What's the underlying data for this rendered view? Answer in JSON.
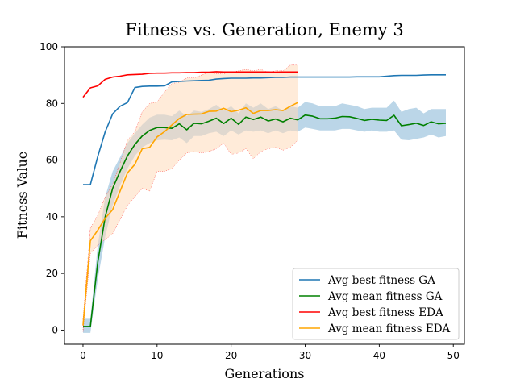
{
  "chart_data": {
    "type": "line",
    "title": "Fitness vs. Generation, Enemy 3",
    "xlabel": "Generations",
    "ylabel": "Fitness Value",
    "xlim": [
      -2.5,
      51.5
    ],
    "ylim": [
      -5,
      100
    ],
    "xticks": [
      0,
      10,
      20,
      30,
      40,
      50
    ],
    "yticks": [
      0,
      20,
      40,
      60,
      80,
      100
    ],
    "grid": false,
    "legend_position": "lower-right",
    "series": [
      {
        "name": "Avg best fitness GA",
        "color": "#1f77b4",
        "x": [
          0,
          1,
          2,
          3,
          4,
          5,
          6,
          7,
          8,
          9,
          10,
          11,
          12,
          13,
          14,
          15,
          16,
          17,
          18,
          19,
          20,
          21,
          22,
          23,
          24,
          25,
          26,
          27,
          28,
          29,
          30,
          31,
          32,
          33,
          34,
          35,
          36,
          37,
          38,
          39,
          40,
          41,
          42,
          43,
          44,
          45,
          46,
          47,
          48,
          49
        ],
        "y": [
          51.3,
          51.3,
          61.3,
          70.0,
          76.3,
          79.0,
          80.3,
          85.6,
          86.0,
          86.1,
          86.1,
          86.2,
          87.6,
          87.8,
          87.9,
          88.0,
          88.1,
          88.2,
          88.6,
          88.8,
          88.9,
          88.9,
          88.9,
          89.0,
          89.0,
          89.1,
          89.2,
          89.2,
          89.3,
          89.3,
          89.3,
          89.3,
          89.3,
          89.3,
          89.3,
          89.3,
          89.3,
          89.4,
          89.4,
          89.4,
          89.4,
          89.6,
          89.8,
          89.9,
          89.9,
          89.9,
          90.0,
          90.1,
          90.1,
          90.1
        ]
      },
      {
        "name": "Avg mean fitness GA",
        "color": "#008000",
        "band_color": "#1f77b4",
        "x": [
          0,
          1,
          2,
          3,
          4,
          5,
          6,
          7,
          8,
          9,
          10,
          11,
          12,
          13,
          14,
          15,
          16,
          17,
          18,
          19,
          20,
          21,
          22,
          23,
          24,
          25,
          26,
          27,
          28,
          29,
          30,
          31,
          32,
          33,
          34,
          35,
          36,
          37,
          38,
          39,
          40,
          41,
          42,
          43,
          44,
          45,
          46,
          47,
          48,
          49
        ],
        "y": [
          1.3,
          1.3,
          24.0,
          40.0,
          50.0,
          56.0,
          61.5,
          65.5,
          68.5,
          70.5,
          71.5,
          71.5,
          71.2,
          72.8,
          70.7,
          73.0,
          72.8,
          73.7,
          74.8,
          72.9,
          74.8,
          72.6,
          75.2,
          74.3,
          75.2,
          73.8,
          74.5,
          73.5,
          74.8,
          74.2,
          75.9,
          75.5,
          74.6,
          74.6,
          74.8,
          75.4,
          75.3,
          74.7,
          74.0,
          74.4,
          74.1,
          74.0,
          75.8,
          72.1,
          72.5,
          73.0,
          72.2,
          73.5,
          72.8,
          73.0
        ],
        "lower": [
          -1.0,
          -1.0,
          18.0,
          33.0,
          44.0,
          51.0,
          57.0,
          61.5,
          64.5,
          66.0,
          67.0,
          67.2,
          67.0,
          68.0,
          66.0,
          68.5,
          68.5,
          69.5,
          70.0,
          68.5,
          70.5,
          69.0,
          70.5,
          70.0,
          70.5,
          69.5,
          70.5,
          69.5,
          70.5,
          70.0,
          71.5,
          71.0,
          70.5,
          70.5,
          70.5,
          71.0,
          71.0,
          70.5,
          70.0,
          70.5,
          70.0,
          70.0,
          70.5,
          67.2,
          67.0,
          67.5,
          68.0,
          69.0,
          68.0,
          68.5
        ],
        "upper": [
          4.0,
          4.0,
          30.0,
          47.0,
          56.0,
          61.0,
          66.0,
          69.5,
          72.5,
          75.0,
          76.0,
          76.0,
          75.5,
          77.5,
          75.5,
          77.5,
          77.0,
          78.0,
          79.5,
          77.5,
          79.0,
          76.5,
          80.0,
          78.5,
          80.0,
          78.0,
          79.0,
          77.5,
          79.0,
          78.5,
          80.5,
          80.0,
          79.0,
          79.0,
          79.0,
          80.0,
          79.5,
          79.0,
          78.0,
          78.5,
          78.5,
          78.5,
          81.0,
          77.0,
          78.0,
          78.5,
          76.5,
          78.0,
          78.0,
          78.0
        ]
      },
      {
        "name": "Avg best fitness EDA",
        "color": "#ff0000",
        "x": [
          0,
          1,
          2,
          3,
          4,
          5,
          6,
          7,
          8,
          9,
          10,
          11,
          12,
          13,
          14,
          15,
          16,
          17,
          18,
          19,
          20,
          21,
          22,
          23,
          24,
          25,
          26,
          27,
          28,
          29
        ],
        "y": [
          82.2,
          85.5,
          86.2,
          88.5,
          89.3,
          89.6,
          90.1,
          90.2,
          90.3,
          90.6,
          90.7,
          90.7,
          90.8,
          90.8,
          90.9,
          90.9,
          91.0,
          91.0,
          91.2,
          91.1,
          91.1,
          91.1,
          91.1,
          91.1,
          91.1,
          91.1,
          91.0,
          91.1,
          91.1,
          91.1
        ]
      },
      {
        "name": "Avg mean fitness EDA",
        "color": "#ffa500",
        "band_color": "#ffdab9",
        "x": [
          0,
          1,
          2,
          3,
          4,
          5,
          6,
          7,
          8,
          9,
          10,
          11,
          12,
          13,
          14,
          15,
          16,
          17,
          18,
          19,
          20,
          21,
          22,
          23,
          24,
          25,
          26,
          27,
          28,
          29
        ],
        "y": [
          1.7,
          31.5,
          35.3,
          39.5,
          42.5,
          49.0,
          55.5,
          58.5,
          64.0,
          64.5,
          68.2,
          70.0,
          72.4,
          74.7,
          76.1,
          76.2,
          76.3,
          77.2,
          77.3,
          78.3,
          77.1,
          77.6,
          78.5,
          76.5,
          77.5,
          77.5,
          77.8,
          77.5,
          79.0,
          80.3
        ],
        "lower": [
          -0.5,
          27.0,
          30.0,
          32.0,
          34.0,
          39.0,
          44.0,
          47.0,
          50.0,
          49.0,
          56.0,
          56.0,
          57.0,
          60.0,
          62.5,
          63.0,
          62.5,
          63.0,
          64.0,
          66.0,
          62.0,
          62.5,
          64.0,
          60.5,
          63.0,
          64.0,
          64.5,
          63.5,
          64.5,
          67.0
        ],
        "upper": [
          4.0,
          36.0,
          40.5,
          47.0,
          51.5,
          59.0,
          67.0,
          70.0,
          77.0,
          80.0,
          80.5,
          84.0,
          87.0,
          87.5,
          89.0,
          89.0,
          90.0,
          91.0,
          90.5,
          90.5,
          91.0,
          91.5,
          92.0,
          91.5,
          92.0,
          91.0,
          91.5,
          91.5,
          93.5,
          93.5
        ]
      }
    ]
  }
}
